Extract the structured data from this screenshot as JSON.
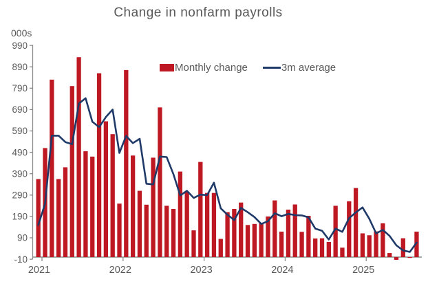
{
  "title": "Change in nonfarm payrolls",
  "unit_label": "000s",
  "legend": {
    "bar_label": "Monthly change",
    "line_label": "3m average"
  },
  "colors": {
    "bar": "#be1823",
    "line": "#1f3a68",
    "text": "#595959",
    "axis": "#8c8c8c"
  },
  "chart_data": {
    "type": "bar",
    "title": "Change in nonfarm payrolls",
    "ylabel": "000s",
    "ylim": [
      -10,
      990
    ],
    "y_ticks": [
      990,
      890,
      790,
      690,
      590,
      490,
      390,
      290,
      190,
      90,
      -10
    ],
    "x_start_month": "2021-01",
    "x_end_month": "2025-09",
    "x_tick_labels": [
      "2021",
      "2022",
      "2023",
      "2024",
      "2025"
    ],
    "grid": false,
    "legend_position": "top-inside",
    "series": [
      {
        "name": "Monthly change",
        "type": "bar",
        "values": [
          365,
          510,
          830,
          365,
          420,
          800,
          935,
          495,
          470,
          860,
          635,
          575,
          250,
          875,
          475,
          310,
          245,
          465,
          700,
          240,
          225,
          400,
          305,
          125,
          445,
          300,
          300,
          85,
          210,
          225,
          255,
          150,
          155,
          160,
          190,
          265,
          119,
          222,
          246,
          118,
          193,
          87,
          88,
          71,
          240,
          44,
          261,
          323,
          111,
          102,
          120,
          158,
          19,
          -13,
          88,
          -4,
          119
        ]
      },
      {
        "name": "3m average",
        "type": "line",
        "values": [
          150,
          250,
          568,
          568,
          538,
          528,
          718,
          743,
          633,
          608,
          655,
          690,
          487,
          567,
          533,
          553,
          343,
          340,
          470,
          468,
          388,
          288,
          310,
          277,
          292,
          290,
          348,
          228,
          198,
          173,
          230,
          210,
          187,
          155,
          168,
          205,
          191,
          202,
          196,
          195,
          186,
          133,
          123,
          82,
          133,
          118,
          182,
          209,
          232,
          179,
          111,
          127,
          99,
          55,
          31,
          24,
          68
        ]
      }
    ]
  }
}
